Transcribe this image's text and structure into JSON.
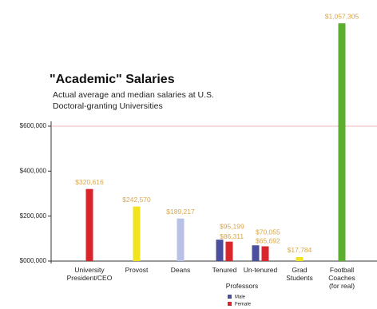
{
  "chart_data": {
    "type": "bar",
    "title": "\"Academic\" Salaries",
    "subtitle": [
      "Actual average and median salaries at U.S.",
      "Doctoral-granting Universities"
    ],
    "categories": [
      "University President/CEO",
      "Provost",
      "Deans",
      "Tenured",
      "Un-tenured",
      "Grad Students",
      "Football Coaches (for real)"
    ],
    "group_label": "Professors",
    "values": [
      320616,
      242570,
      189217,
      null,
      null,
      17784,
      1057305
    ],
    "value_labels": [
      "$320,616",
      "$242,570",
      "$189,217",
      null,
      null,
      "$17,784",
      "$1,057,305"
    ],
    "colors": [
      "#d8262c",
      "#f2e41c",
      "#b8c2e6",
      null,
      null,
      "#f2e41c",
      "#5cae2e"
    ],
    "series": [
      {
        "name": "Male",
        "color": "#4b4f9c",
        "values": [
          null,
          null,
          null,
          95199,
          70055,
          null,
          null
        ],
        "value_labels": [
          null,
          null,
          null,
          "$95,199",
          "$70,055",
          null,
          null
        ]
      },
      {
        "name": "Female",
        "color": "#d8262c",
        "values": [
          null,
          null,
          null,
          86311,
          65692,
          null,
          null
        ],
        "value_labels": [
          null,
          null,
          null,
          "$86,311",
          "$65,692",
          null,
          null
        ]
      }
    ],
    "ylim": [
      0,
      600000
    ],
    "yticks": [
      {
        "value": 0,
        "label": "$000,000"
      },
      {
        "value": 200000,
        "label": "$200,000"
      },
      {
        "value": 400000,
        "label": "$400,000"
      },
      {
        "value": 600000,
        "label": "$600,000"
      }
    ]
  }
}
